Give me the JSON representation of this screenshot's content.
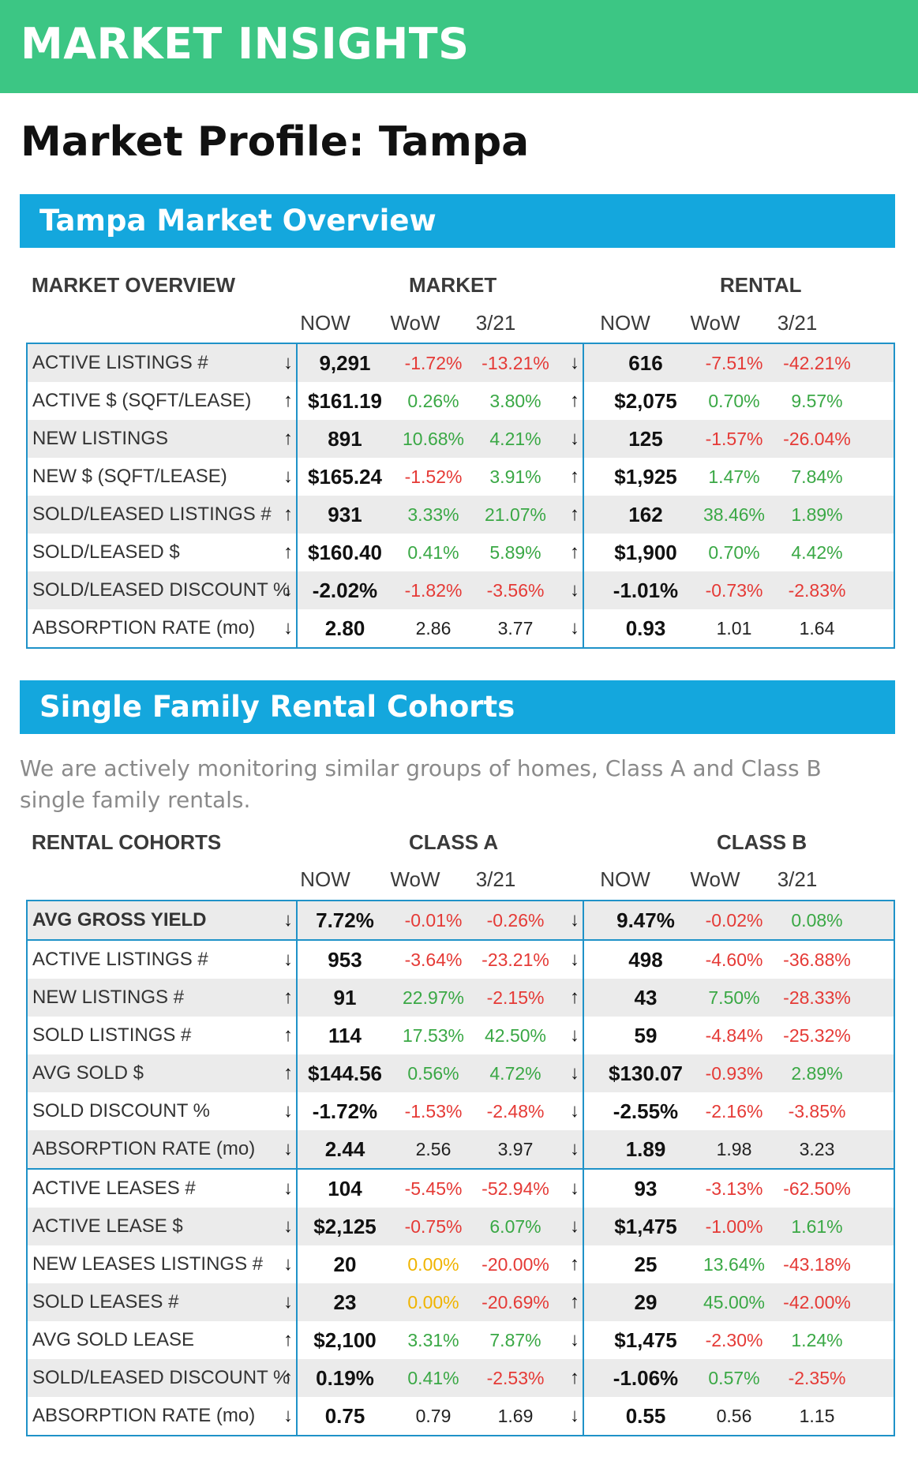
{
  "banner": {
    "title": "MARKET INSIGHTS"
  },
  "page_title": "Market Profile: Tampa",
  "overview": {
    "section_title": "Tampa Market Overview",
    "header": {
      "label": "MARKET OVERVIEW",
      "group_a": "MARKET",
      "group_b": "RENTAL"
    },
    "subheaders": [
      "NOW",
      "WoW",
      "3/21",
      "NOW",
      "WoW",
      "3/21"
    ],
    "rows": [
      {
        "label": "ACTIVE LISTINGS #",
        "a_arrow": "↓",
        "a_now": "9,291",
        "a_wow": "-1.72%",
        "a_wow_tone": "neg",
        "a_321": "-13.21%",
        "a_321_tone": "neg",
        "b_arrow": "↓",
        "b_now": "616",
        "b_wow": "-7.51%",
        "b_wow_tone": "neg",
        "b_321": "-42.21%",
        "b_321_tone": "neg"
      },
      {
        "label": "ACTIVE $ (SQFT/LEASE)",
        "a_arrow": "↑",
        "a_now": "$161.19",
        "a_wow": "0.26%",
        "a_wow_tone": "pos",
        "a_321": "3.80%",
        "a_321_tone": "pos",
        "b_arrow": "↑",
        "b_now": "$2,075",
        "b_wow": "0.70%",
        "b_wow_tone": "pos",
        "b_321": "9.57%",
        "b_321_tone": "pos"
      },
      {
        "label": "NEW LISTINGS",
        "a_arrow": "↑",
        "a_now": "891",
        "a_wow": "10.68%",
        "a_wow_tone": "pos",
        "a_321": "4.21%",
        "a_321_tone": "pos",
        "b_arrow": "↓",
        "b_now": "125",
        "b_wow": "-1.57%",
        "b_wow_tone": "neg",
        "b_321": "-26.04%",
        "b_321_tone": "neg"
      },
      {
        "label": "NEW $ (SQFT/LEASE)",
        "a_arrow": "↓",
        "a_now": "$165.24",
        "a_wow": "-1.52%",
        "a_wow_tone": "neg",
        "a_321": "3.91%",
        "a_321_tone": "pos",
        "b_arrow": "↑",
        "b_now": "$1,925",
        "b_wow": "1.47%",
        "b_wow_tone": "pos",
        "b_321": "7.84%",
        "b_321_tone": "pos"
      },
      {
        "label": "SOLD/LEASED LISTINGS #",
        "a_arrow": "↑",
        "a_now": "931",
        "a_wow": "3.33%",
        "a_wow_tone": "pos",
        "a_321": "21.07%",
        "a_321_tone": "pos",
        "b_arrow": "↑",
        "b_now": "162",
        "b_wow": "38.46%",
        "b_wow_tone": "pos",
        "b_321": "1.89%",
        "b_321_tone": "pos"
      },
      {
        "label": "SOLD/LEASED $",
        "a_arrow": "↑",
        "a_now": "$160.40",
        "a_wow": "0.41%",
        "a_wow_tone": "pos",
        "a_321": "5.89%",
        "a_321_tone": "pos",
        "b_arrow": "↑",
        "b_now": "$1,900",
        "b_wow": "0.70%",
        "b_wow_tone": "pos",
        "b_321": "4.42%",
        "b_321_tone": "pos"
      },
      {
        "label": "SOLD/LEASED DISCOUNT %",
        "a_arrow": "↓",
        "a_now": "-2.02%",
        "a_wow": "-1.82%",
        "a_wow_tone": "neg",
        "a_321": "-3.56%",
        "a_321_tone": "neg",
        "b_arrow": "↓",
        "b_now": "-1.01%",
        "b_wow": "-0.73%",
        "b_wow_tone": "neg",
        "b_321": "-2.83%",
        "b_321_tone": "neg"
      },
      {
        "label": "ABSORPTION RATE (mo)",
        "a_arrow": "↓",
        "a_now": "2.80",
        "a_wow": "2.86",
        "a_wow_tone": "plain",
        "a_321": "3.77",
        "a_321_tone": "plain",
        "b_arrow": "↓",
        "b_now": "0.93",
        "b_wow": "1.01",
        "b_wow_tone": "plain",
        "b_321": "1.64",
        "b_321_tone": "plain"
      }
    ]
  },
  "cohorts": {
    "section_title": "Single Family Rental Cohorts",
    "description": "We are actively monitoring similar groups of homes, Class A and Class B single family rentals.",
    "header": {
      "label": "RENTAL COHORTS",
      "group_a": "CLASS A",
      "group_b": "CLASS B"
    },
    "subheaders": [
      "NOW",
      "WoW",
      "3/21",
      "NOW",
      "WoW",
      "3/21"
    ],
    "rows": [
      {
        "label": "AVG GROSS YIELD",
        "bold": true,
        "a_arrow": "↓",
        "a_now": "7.72%",
        "a_wow": "-0.01%",
        "a_wow_tone": "neg",
        "a_321": "-0.26%",
        "a_321_tone": "neg",
        "b_arrow": "↓",
        "b_now": "9.47%",
        "b_wow": "-0.02%",
        "b_wow_tone": "neg",
        "b_321": "0.08%",
        "b_321_tone": "pos"
      },
      {
        "label": "ACTIVE LISTINGS #",
        "a_arrow": "↓",
        "a_now": "953",
        "a_wow": "-3.64%",
        "a_wow_tone": "neg",
        "a_321": "-23.21%",
        "a_321_tone": "neg",
        "b_arrow": "↓",
        "b_now": "498",
        "b_wow": "-4.60%",
        "b_wow_tone": "neg",
        "b_321": "-36.88%",
        "b_321_tone": "neg"
      },
      {
        "label": "NEW LISTINGS #",
        "a_arrow": "↑",
        "a_now": "91",
        "a_wow": "22.97%",
        "a_wow_tone": "pos",
        "a_321": "-2.15%",
        "a_321_tone": "neg",
        "b_arrow": "↑",
        "b_now": "43",
        "b_wow": "7.50%",
        "b_wow_tone": "pos",
        "b_321": "-28.33%",
        "b_321_tone": "neg"
      },
      {
        "label": "SOLD LISTINGS #",
        "a_arrow": "↑",
        "a_now": "114",
        "a_wow": "17.53%",
        "a_wow_tone": "pos",
        "a_321": "42.50%",
        "a_321_tone": "pos",
        "b_arrow": "↓",
        "b_now": "59",
        "b_wow": "-4.84%",
        "b_wow_tone": "neg",
        "b_321": "-25.32%",
        "b_321_tone": "neg"
      },
      {
        "label": "AVG SOLD $",
        "a_arrow": "↑",
        "a_now": "$144.56",
        "a_wow": "0.56%",
        "a_wow_tone": "pos",
        "a_321": "4.72%",
        "a_321_tone": "pos",
        "b_arrow": "↓",
        "b_now": "$130.07",
        "b_wow": "-0.93%",
        "b_wow_tone": "neg",
        "b_321": "2.89%",
        "b_321_tone": "pos"
      },
      {
        "label": "SOLD DISCOUNT %",
        "a_arrow": "↓",
        "a_now": "-1.72%",
        "a_wow": "-1.53%",
        "a_wow_tone": "neg",
        "a_321": "-2.48%",
        "a_321_tone": "neg",
        "b_arrow": "↓",
        "b_now": "-2.55%",
        "b_wow": "-2.16%",
        "b_wow_tone": "neg",
        "b_321": "-3.85%",
        "b_321_tone": "neg"
      },
      {
        "label": "ABSORPTION RATE (mo)",
        "a_arrow": "↓",
        "a_now": "2.44",
        "a_wow": "2.56",
        "a_wow_tone": "plain",
        "a_321": "3.97",
        "a_321_tone": "plain",
        "b_arrow": "↓",
        "b_now": "1.89",
        "b_wow": "1.98",
        "b_wow_tone": "plain",
        "b_321": "3.23",
        "b_321_tone": "plain"
      },
      {
        "label": "ACTIVE LEASES #",
        "a_arrow": "↓",
        "a_now": "104",
        "a_wow": "-5.45%",
        "a_wow_tone": "neg",
        "a_321": "-52.94%",
        "a_321_tone": "neg",
        "b_arrow": "↓",
        "b_now": "93",
        "b_wow": "-3.13%",
        "b_wow_tone": "neg",
        "b_321": "-62.50%",
        "b_321_tone": "neg"
      },
      {
        "label": "ACTIVE LEASE $",
        "a_arrow": "↓",
        "a_now": "$2,125",
        "a_wow": "-0.75%",
        "a_wow_tone": "neg",
        "a_321": "6.07%",
        "a_321_tone": "pos",
        "b_arrow": "↓",
        "b_now": "$1,475",
        "b_wow": "-1.00%",
        "b_wow_tone": "neg",
        "b_321": "1.61%",
        "b_321_tone": "pos"
      },
      {
        "label": "NEW LEASES LISTINGS #",
        "a_arrow": "↓",
        "a_now": "20",
        "a_wow": "0.00%",
        "a_wow_tone": "zero",
        "a_321": "-20.00%",
        "a_321_tone": "neg",
        "b_arrow": "↑",
        "b_now": "25",
        "b_wow": "13.64%",
        "b_wow_tone": "pos",
        "b_321": "-43.18%",
        "b_321_tone": "neg"
      },
      {
        "label": "SOLD LEASES #",
        "a_arrow": "↓",
        "a_now": "23",
        "a_wow": "0.00%",
        "a_wow_tone": "zero",
        "a_321": "-20.69%",
        "a_321_tone": "neg",
        "b_arrow": "↑",
        "b_now": "29",
        "b_wow": "45.00%",
        "b_wow_tone": "pos",
        "b_321": "-42.00%",
        "b_321_tone": "neg"
      },
      {
        "label": "AVG SOLD LEASE",
        "a_arrow": "↑",
        "a_now": "$2,100",
        "a_wow": "3.31%",
        "a_wow_tone": "pos",
        "a_321": "7.87%",
        "a_321_tone": "pos",
        "b_arrow": "↓",
        "b_now": "$1,475",
        "b_wow": "-2.30%",
        "b_wow_tone": "neg",
        "b_321": "1.24%",
        "b_321_tone": "pos"
      },
      {
        "label": "SOLD/LEASED DISCOUNT %",
        "a_arrow": "↑",
        "a_now": "0.19%",
        "a_wow": "0.41%",
        "a_wow_tone": "pos",
        "a_321": "-2.53%",
        "a_321_tone": "neg",
        "b_arrow": "↑",
        "b_now": "-1.06%",
        "b_wow": "0.57%",
        "b_wow_tone": "pos",
        "b_321": "-2.35%",
        "b_321_tone": "neg"
      },
      {
        "label": "ABSORPTION RATE (mo)",
        "a_arrow": "↓",
        "a_now": "0.75",
        "a_wow": "0.79",
        "a_wow_tone": "plain",
        "a_321": "1.69",
        "a_321_tone": "plain",
        "b_arrow": "↓",
        "b_now": "0.55",
        "b_wow": "0.56",
        "b_wow_tone": "plain",
        "b_321": "1.15",
        "b_321_tone": "plain"
      }
    ]
  },
  "colors": {
    "banner": "#3cc684",
    "section_bar": "#14a7dd",
    "table_border": "#1f92c8",
    "positive": "#3aa845",
    "negative": "#e53a36",
    "flat": "#f0b400"
  }
}
